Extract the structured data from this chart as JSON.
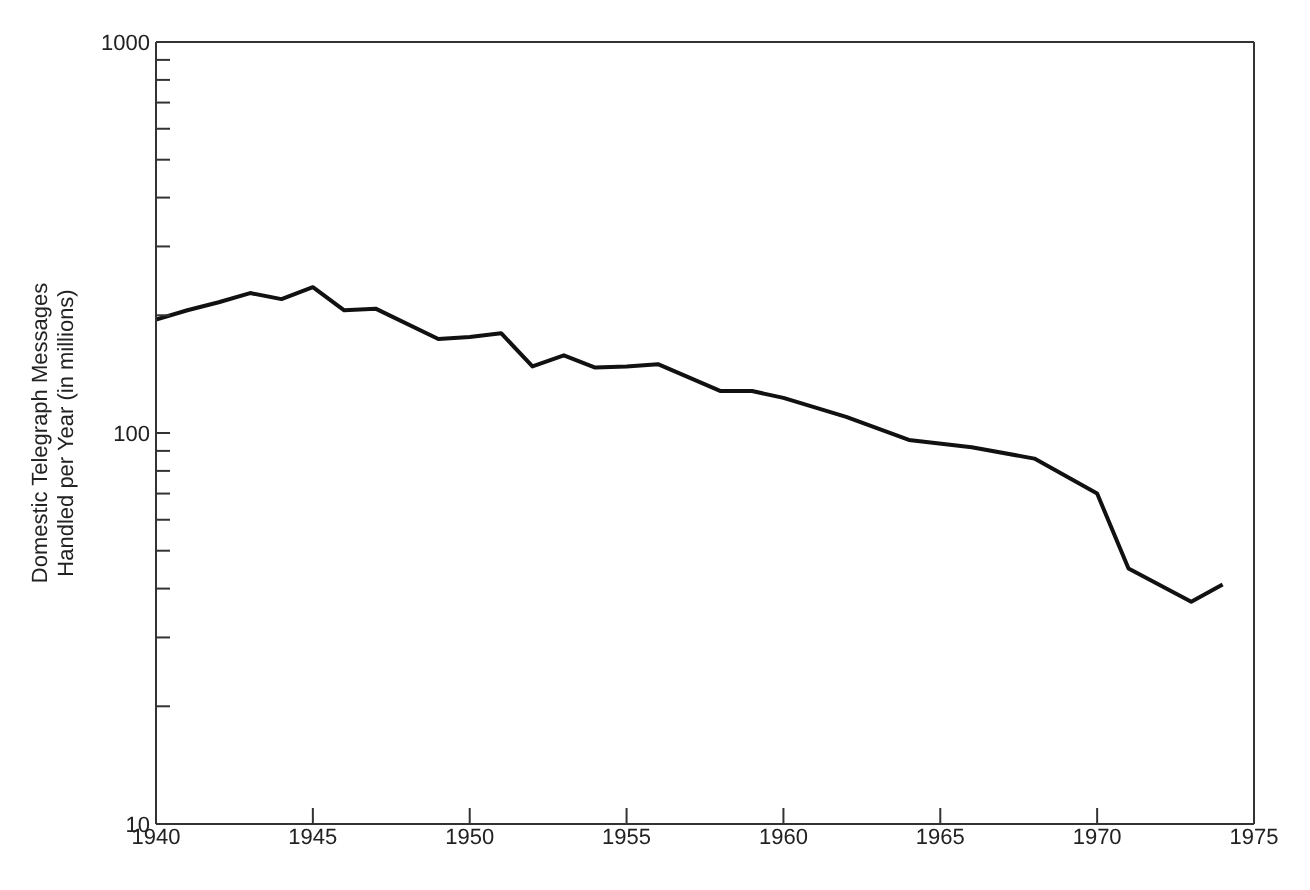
{
  "chart_data": {
    "type": "line",
    "ylabel": "Domestic Telegraph Messages\nHandled per Year (in millions)",
    "x": [
      1940,
      1941,
      1942,
      1943,
      1944,
      1945,
      1946,
      1947,
      1949,
      1950,
      1951,
      1952,
      1953,
      1954,
      1955,
      1956,
      1958,
      1959,
      1960,
      1962,
      1964,
      1966,
      1968,
      1970,
      1971,
      1973,
      1974
    ],
    "series": [
      {
        "color": "#111111",
        "values": [
          195,
          206,
          216,
          228,
          220,
          236,
          206,
          208,
          174,
          176,
          180,
          148,
          158,
          147,
          148,
          150,
          128,
          128,
          123,
          110,
          96,
          92,
          86,
          70,
          45,
          37,
          41
        ]
      }
    ],
    "log": true,
    "xlim": [
      1940,
      1975
    ],
    "xticks": [
      1940,
      1945,
      1950,
      1955,
      1960,
      1965,
      1970,
      1975
    ],
    "ylim": [
      10,
      1000
    ],
    "yticks": [
      10,
      {
        "value": 20,
        "label": null
      },
      {
        "value": 30,
        "label": null
      },
      {
        "value": 40,
        "label": null
      },
      {
        "value": 50,
        "label": null
      },
      {
        "value": 60,
        "label": null
      },
      {
        "value": 70,
        "label": null
      },
      {
        "value": 80,
        "label": null
      },
      {
        "value": 90,
        "label": null
      },
      100,
      {
        "value": 200,
        "label": null
      },
      {
        "value": 300,
        "label": null
      },
      {
        "value": 400,
        "label": null
      },
      {
        "value": 500,
        "label": null
      },
      {
        "value": 600,
        "label": null
      },
      {
        "value": 700,
        "label": null
      },
      {
        "value": 800,
        "label": null
      },
      {
        "value": 900,
        "label": null
      },
      1000
    ],
    "grid": false,
    "legend": false,
    "marker": "none",
    "line_style": "solid"
  }
}
